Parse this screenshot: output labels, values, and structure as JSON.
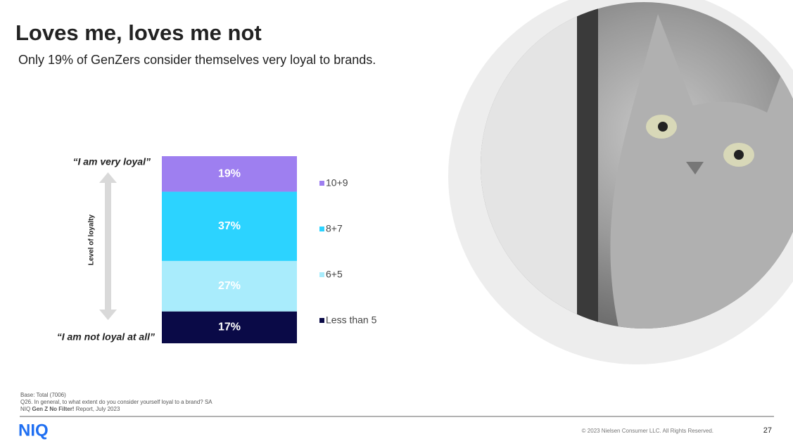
{
  "chart_data": {
    "type": "stacked-bar",
    "title": "Loves me, loves me not",
    "subtitle": "Only 19% of GenZers consider themselves very loyal to brands.",
    "axis_label": "Level of loyalty",
    "annotations": {
      "top": "“I am very loyal”",
      "bottom": "“I am not loyal at all”"
    },
    "series": [
      {
        "name": "10+9",
        "color": "#9e7ff0",
        "values": [
          19
        ],
        "value_labels": [
          "19%"
        ]
      },
      {
        "name": "8+7",
        "color": "#2cd3ff",
        "values": [
          37
        ],
        "value_labels": [
          "37%"
        ]
      },
      {
        "name": "6+5",
        "color": "#a9ecfc",
        "values": [
          27
        ],
        "value_labels": [
          "27%"
        ]
      },
      {
        "name": "Less than 5",
        "color": "#0a0a47",
        "values": [
          17
        ],
        "value_labels": [
          "17%"
        ]
      }
    ]
  },
  "footer": {
    "notes": [
      "Base: Total (7006)",
      "Q26. In general, to what extent do you consider yourself loyal to a brand? SA"
    ],
    "source": [
      "NIQ",
      "Gen Z No Filter!",
      "Report, July 2023"
    ],
    "logo": "NIQ",
    "copyright": "© 2023 Nielsen Consumer LLC. All Rights Reserved.",
    "page": "27"
  }
}
